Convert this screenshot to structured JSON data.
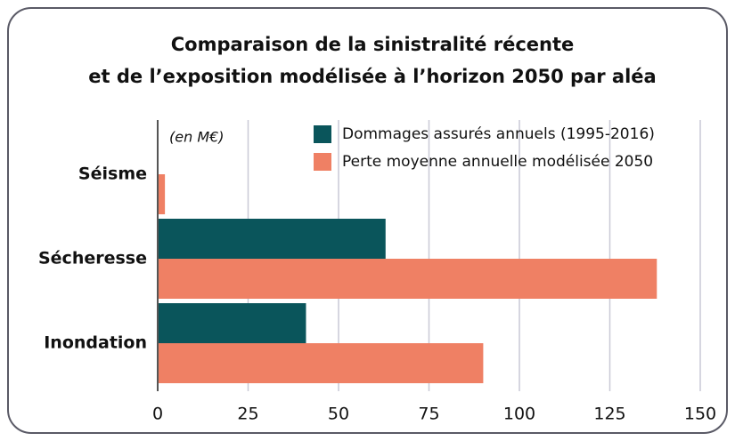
{
  "chart_data": {
    "type": "barh",
    "title": [
      "Comparaison de la sinistralité récente",
      "et de l’exposition modélisée à l’horizon 2050 par aléa"
    ],
    "annotation": "(en M€)",
    "categories": [
      "Séisme",
      "Sécheresse",
      "Inondation"
    ],
    "series": [
      {
        "name": "Dommages assurés annuels (1995-2016)",
        "color": "#0a555b",
        "values": [
          null,
          63,
          41
        ]
      },
      {
        "name": "Perte moyenne annuelle modélisée 2050",
        "color": "#ef8064",
        "values": [
          2,
          138,
          90
        ]
      }
    ],
    "xlim": [
      0,
      150
    ],
    "xticks": [
      0,
      25,
      50,
      75,
      100,
      125,
      150
    ],
    "grid": true
  }
}
